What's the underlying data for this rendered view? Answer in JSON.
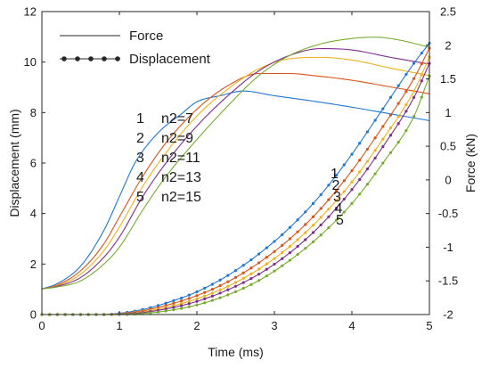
{
  "chart_data": {
    "type": "line",
    "xlabel": "Time (ms)",
    "ylabel_left": "Displacement (mm)",
    "ylabel_right": "Force (kN)",
    "xlim": [
      0,
      5
    ],
    "ylim_left": [
      0,
      12
    ],
    "ylim_right": [
      -2,
      2.5
    ],
    "x_ticks": [
      "0",
      "1",
      "2",
      "3",
      "4",
      "5"
    ],
    "y_left_ticks": [
      "0",
      "2",
      "4",
      "6",
      "8",
      "10",
      "12"
    ],
    "y_right_ticks": [
      "-2",
      "-1.5",
      "-1",
      "-0.5",
      "0",
      "0.5",
      "1",
      "1.5",
      "2",
      "2.5"
    ],
    "grid": false,
    "legend": {
      "placement": "top-left",
      "items": [
        {
          "label": "Force",
          "style": "line"
        },
        {
          "label": "Displacement",
          "style": "line-with-dots"
        }
      ]
    },
    "case_labels": [
      {
        "num": "1",
        "text": "n2=7"
      },
      {
        "num": "2",
        "text": "n2=9"
      },
      {
        "num": "3",
        "text": "n2=11"
      },
      {
        "num": "4",
        "text": "n2=13"
      },
      {
        "num": "5",
        "text": "n2=15"
      }
    ],
    "displacement_tags": [
      "1",
      "2",
      "3",
      "4",
      "5"
    ],
    "colors": [
      "#1f77d4",
      "#d9541a",
      "#edb120",
      "#7e2f8e",
      "#77ac30"
    ],
    "force_series": [
      {
        "case": "1",
        "axis": "right",
        "x": [
          0,
          0.2,
          0.5,
          0.8,
          1.0,
          1.2,
          1.5,
          1.8,
          2.0,
          2.3,
          2.6,
          3.0,
          3.5,
          4.0,
          4.5,
          5.0
        ],
        "y": [
          -1.62,
          -1.54,
          -1.28,
          -0.75,
          -0.25,
          0.25,
          0.7,
          0.98,
          1.16,
          1.25,
          1.32,
          1.25,
          1.17,
          1.08,
          0.98,
          0.88
        ]
      },
      {
        "case": "2",
        "axis": "right",
        "x": [
          0,
          0.2,
          0.5,
          0.8,
          1.0,
          1.3,
          1.6,
          2.0,
          2.4,
          2.8,
          3.2,
          3.5,
          4.0,
          4.5,
          5.0
        ],
        "y": [
          -1.62,
          -1.56,
          -1.35,
          -0.95,
          -0.55,
          0.05,
          0.55,
          1.05,
          1.4,
          1.58,
          1.58,
          1.55,
          1.48,
          1.38,
          1.28
        ]
      },
      {
        "case": "3",
        "axis": "right",
        "x": [
          0,
          0.2,
          0.5,
          0.8,
          1.0,
          1.3,
          1.6,
          2.0,
          2.4,
          2.8,
          3.2,
          3.6,
          4.0,
          4.5,
          5.0
        ],
        "y": [
          -1.62,
          -1.57,
          -1.4,
          -1.05,
          -0.7,
          -0.1,
          0.4,
          0.95,
          1.35,
          1.65,
          1.8,
          1.82,
          1.78,
          1.66,
          1.55
        ]
      },
      {
        "case": "4",
        "axis": "right",
        "x": [
          0,
          0.2,
          0.5,
          0.8,
          1.0,
          1.3,
          1.6,
          2.0,
          2.4,
          2.8,
          3.2,
          3.6,
          4.0,
          4.5,
          5.0
        ],
        "y": [
          -1.62,
          -1.58,
          -1.45,
          -1.15,
          -0.85,
          -0.25,
          0.25,
          0.8,
          1.25,
          1.62,
          1.85,
          1.95,
          1.93,
          1.82,
          1.72
        ]
      },
      {
        "case": "5",
        "axis": "right",
        "x": [
          0,
          0.2,
          0.5,
          0.8,
          1.0,
          1.3,
          1.6,
          2.0,
          2.4,
          2.8,
          3.2,
          3.6,
          4.0,
          4.3,
          4.6,
          5.0
        ],
        "y": [
          -1.62,
          -1.59,
          -1.5,
          -1.25,
          -1.0,
          -0.45,
          0.05,
          0.6,
          1.1,
          1.55,
          1.85,
          2.02,
          2.1,
          2.12,
          2.08,
          1.97
        ]
      }
    ],
    "displacement_series": [
      {
        "case": "1",
        "axis": "left",
        "x": [
          0,
          0.5,
          0.8,
          1.0,
          1.3,
          1.6,
          2.0,
          2.4,
          2.8,
          3.2,
          3.6,
          4.0,
          4.4,
          4.8,
          5.0
        ],
        "y": [
          0,
          0,
          0,
          0.05,
          0.2,
          0.45,
          0.9,
          1.55,
          2.4,
          3.45,
          4.75,
          6.35,
          8.15,
          9.95,
          10.75
        ]
      },
      {
        "case": "2",
        "axis": "left",
        "x": [
          0,
          0.5,
          0.8,
          1.0,
          1.3,
          1.6,
          2.0,
          2.4,
          2.8,
          3.2,
          3.6,
          4.0,
          4.4,
          4.8,
          5.0
        ],
        "y": [
          0,
          0,
          0,
          0.03,
          0.15,
          0.36,
          0.75,
          1.3,
          2.05,
          3.0,
          4.2,
          5.7,
          7.45,
          9.35,
          10.55
        ]
      },
      {
        "case": "3",
        "axis": "left",
        "x": [
          0,
          0.5,
          0.8,
          1.0,
          1.3,
          1.6,
          2.0,
          2.4,
          2.8,
          3.2,
          3.6,
          4.0,
          4.4,
          4.8,
          5.0
        ],
        "y": [
          0,
          0,
          0,
          0.02,
          0.11,
          0.28,
          0.62,
          1.12,
          1.8,
          2.7,
          3.85,
          5.25,
          6.95,
          8.85,
          10.2
        ]
      },
      {
        "case": "4",
        "axis": "left",
        "x": [
          0,
          0.5,
          0.8,
          1.0,
          1.3,
          1.6,
          2.0,
          2.4,
          2.8,
          3.2,
          3.6,
          4.0,
          4.4,
          4.8,
          5.0
        ],
        "y": [
          0,
          0,
          0,
          0.01,
          0.08,
          0.22,
          0.52,
          0.98,
          1.6,
          2.45,
          3.55,
          4.95,
          6.65,
          8.6,
          9.95
        ]
      },
      {
        "case": "5",
        "axis": "left",
        "x": [
          0,
          0.5,
          0.8,
          1.0,
          1.3,
          1.6,
          2.0,
          2.4,
          2.8,
          3.2,
          3.6,
          4.0,
          4.4,
          4.8,
          5.0
        ],
        "y": [
          0,
          0,
          0,
          0.0,
          0.04,
          0.14,
          0.38,
          0.78,
          1.35,
          2.15,
          3.15,
          4.4,
          6.0,
          7.85,
          9.45
        ]
      }
    ]
  }
}
